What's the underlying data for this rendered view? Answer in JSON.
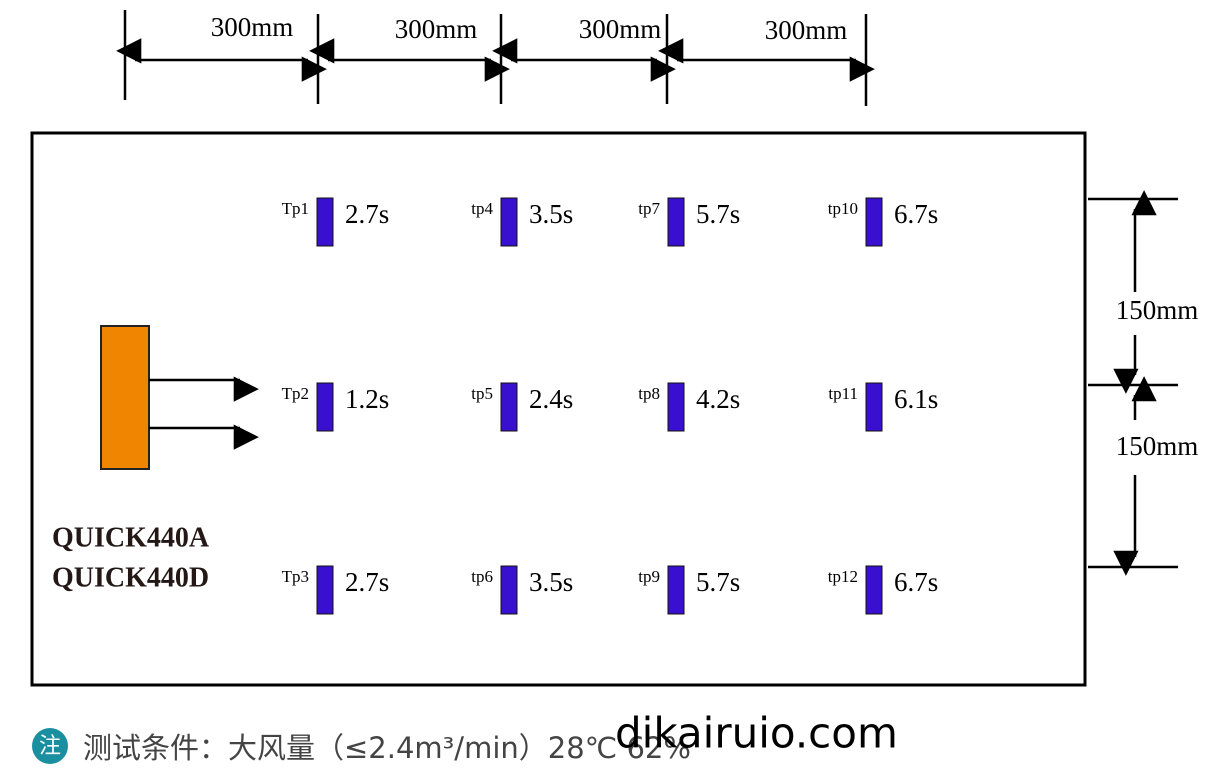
{
  "dimensions": {
    "horizontal": [
      "300mm",
      "300mm",
      "300mm",
      "300mm"
    ],
    "vertical": [
      "150mm",
      "150mm"
    ]
  },
  "device": {
    "models": [
      "QUICK440A",
      "QUICK440D"
    ]
  },
  "test_points": [
    {
      "label": "Tp1",
      "time": "2.7s"
    },
    {
      "label": "Tp2",
      "time": "1.2s"
    },
    {
      "label": "Tp3",
      "time": "2.7s"
    },
    {
      "label": "tp4",
      "time": "3.5s"
    },
    {
      "label": "tp5",
      "time": "2.4s"
    },
    {
      "label": "tp6",
      "time": "3.5s"
    },
    {
      "label": "tp7",
      "time": "5.7s"
    },
    {
      "label": "tp8",
      "time": "4.2s"
    },
    {
      "label": "tp9",
      "time": "5.7s"
    },
    {
      "label": "tp10",
      "time": "6.7s"
    },
    {
      "label": "tp11",
      "time": "6.1s"
    },
    {
      "label": "tp12",
      "time": "6.7s"
    }
  ],
  "footer": {
    "icon": "注",
    "text": "测试条件：大风量（≤2.4m³/min）28℃ 62%"
  },
  "watermark": "dikairuio.com"
}
